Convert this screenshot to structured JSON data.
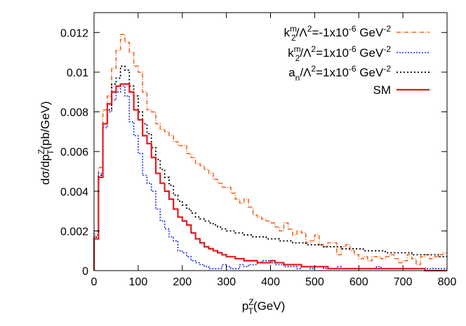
{
  "chart_data": {
    "type": "line",
    "title": "",
    "xlabel": {
      "base": "p",
      "sub": "T",
      "sup": "Z",
      "rest": "(GeV)"
    },
    "ylabel": {
      "pre": "dσ/dp",
      "sub": "T",
      "sup": "Z",
      "rest": "(pb/GeV)"
    },
    "xlim": [
      0,
      800
    ],
    "ylim": [
      0,
      0.013
    ],
    "xticks": [
      0,
      100,
      200,
      300,
      400,
      500,
      600,
      700,
      800
    ],
    "yticks": [
      0,
      0.002,
      0.004,
      0.006,
      0.008,
      0.01,
      0.012
    ],
    "ytick_labels": [
      "0",
      "0.002",
      "0.004",
      "0.006",
      "0.008",
      "0.01",
      "0.012"
    ],
    "bin_width": 10,
    "grid": false,
    "legend_position": "top-right",
    "series": [
      {
        "key": "k2m_neg",
        "legend": {
          "a": "k",
          "a_sub": "2",
          "a_sup": "m",
          "b": "/Λ",
          "b_sup": "2",
          "c": "=-1x10",
          "c_sup": "-6",
          "d": " GeV",
          "d_sup": "-2"
        },
        "color": "#f26522",
        "dash": "6,2,1,2",
        "width": 1.6,
        "x": [
          0,
          10,
          20,
          30,
          40,
          50,
          60,
          70,
          80,
          90,
          100,
          110,
          120,
          130,
          140,
          150,
          160,
          170,
          180,
          190,
          200,
          210,
          220,
          230,
          240,
          250,
          260,
          270,
          280,
          290,
          300,
          310,
          320,
          330,
          340,
          350,
          360,
          370,
          380,
          390,
          400,
          410,
          420,
          430,
          440,
          450,
          460,
          470,
          480,
          490,
          500,
          510,
          520,
          530,
          540,
          550,
          560,
          570,
          580,
          590,
          600,
          610,
          620,
          630,
          640,
          650,
          660,
          670,
          680,
          690,
          700,
          710,
          720,
          730,
          740,
          750,
          760,
          770,
          780,
          790
        ],
        "y": [
          0.0018,
          0.0052,
          0.0081,
          0.0088,
          0.0102,
          0.0111,
          0.0119,
          0.0115,
          0.011,
          0.0103,
          0.01,
          0.009,
          0.0081,
          0.008,
          0.0074,
          0.0071,
          0.007,
          0.0068,
          0.0065,
          0.0063,
          0.0063,
          0.0059,
          0.0057,
          0.0054,
          0.0053,
          0.0051,
          0.0049,
          0.0046,
          0.0044,
          0.0042,
          0.0042,
          0.0039,
          0.0036,
          0.0034,
          0.0036,
          0.0032,
          0.0028,
          0.0027,
          0.0026,
          0.0025,
          0.0024,
          0.0022,
          0.002,
          0.0024,
          0.0021,
          0.0018,
          0.002,
          0.0019,
          0.0014,
          0.0015,
          0.0018,
          0.0013,
          0.0012,
          0.0014,
          0.0014,
          0.0008,
          0.0012,
          0.0013,
          0.001,
          0.0008,
          0.0006,
          0.0007,
          0.0005,
          0.0007,
          0.0007,
          0.0006,
          0.0007,
          0.0008,
          0.0006,
          0.0004,
          0.0005,
          0.0008,
          0.0006,
          0.0003,
          0.0007,
          0.0008,
          0.0006,
          0.0007,
          0.0008,
          0.0009
        ]
      },
      {
        "key": "k2m_pos",
        "legend": {
          "a": "k",
          "a_sub": "2",
          "a_sup": "m",
          "b": "/Λ",
          "b_sup": "2",
          "c": "=1x10",
          "c_sup": "-6",
          "d": " GeV",
          "d_sup": "-2"
        },
        "color": "#1a2de8",
        "dash": "2,2",
        "width": 1.6,
        "x": [
          0,
          10,
          20,
          30,
          40,
          50,
          60,
          70,
          80,
          90,
          100,
          110,
          120,
          130,
          140,
          150,
          160,
          170,
          180,
          190,
          200,
          210,
          220,
          230,
          240,
          250,
          260,
          270,
          280,
          290,
          300,
          310,
          320,
          330,
          340,
          350,
          360,
          370,
          380,
          390,
          400,
          410,
          420,
          430,
          440,
          450,
          460,
          470,
          480,
          490,
          500,
          510,
          520,
          530,
          540,
          550,
          560,
          570,
          580,
          590,
          600,
          610,
          620,
          630,
          640,
          650,
          660,
          670,
          680,
          690,
          700,
          710,
          720,
          730,
          740,
          750,
          760,
          770,
          780,
          790
        ],
        "y": [
          0.002,
          0.0049,
          0.0072,
          0.008,
          0.0086,
          0.009,
          0.0093,
          0.0088,
          0.0075,
          0.0068,
          0.0059,
          0.0048,
          0.0044,
          0.004,
          0.0031,
          0.0025,
          0.0021,
          0.0017,
          0.0015,
          0.001,
          0.0009,
          0.0007,
          0.0005,
          0.0004,
          0.0003,
          0.0002,
          0.0001,
          0.0001,
          0.0001,
          0.0003,
          0.0002,
          0.0001,
          0.0001,
          0.0003,
          0.0002,
          0.0003,
          0.0003,
          0.0004,
          0.0005,
          0.0005,
          0.0004,
          0.0003,
          0.0003,
          0.0002,
          0.0002,
          0.0002,
          0.0001,
          0.0002,
          0.0002,
          0.0001,
          0.0002,
          0.0002,
          0.0001,
          0.0001,
          0.0001,
          0.0002,
          0.0001,
          0.0001,
          0.0001,
          0.0001,
          0.0001,
          0.0001,
          0.0001,
          0.0001,
          0.0002,
          0.0001,
          0.0001,
          0.0001,
          0.0001,
          0.0001,
          0.0001,
          0.0001,
          0.0001,
          0.0001,
          0.0001,
          0.0001,
          0.0001,
          0.0001,
          0.0001,
          0.0001
        ]
      },
      {
        "key": "an",
        "legend": {
          "a": "a",
          "a_sub": "n",
          "a_sup": "",
          "b": "/Λ",
          "b_sup": "2",
          "c": "=1x10",
          "c_sup": "-6",
          "d": " GeV",
          "d_sup": "-2"
        },
        "color": "#000000",
        "dash": "2,3",
        "width": 1.8,
        "x": [
          0,
          10,
          20,
          30,
          40,
          50,
          60,
          70,
          80,
          90,
          100,
          110,
          120,
          130,
          140,
          150,
          160,
          170,
          180,
          190,
          200,
          210,
          220,
          230,
          240,
          250,
          260,
          270,
          280,
          290,
          300,
          310,
          320,
          330,
          340,
          350,
          360,
          370,
          380,
          390,
          400,
          410,
          420,
          430,
          440,
          450,
          460,
          470,
          480,
          490,
          500,
          510,
          520,
          530,
          540,
          550,
          560,
          570,
          580,
          590,
          600,
          610,
          620,
          630,
          640,
          650,
          660,
          670,
          680,
          690,
          700,
          710,
          720,
          730,
          740,
          750,
          760,
          770,
          780,
          790
        ],
        "y": [
          0.0017,
          0.0048,
          0.0074,
          0.0081,
          0.0094,
          0.0097,
          0.0103,
          0.0101,
          0.0093,
          0.0088,
          0.008,
          0.0074,
          0.0069,
          0.0062,
          0.0056,
          0.0051,
          0.0047,
          0.0043,
          0.0038,
          0.0035,
          0.0033,
          0.0031,
          0.0029,
          0.0027,
          0.0026,
          0.0025,
          0.0024,
          0.0023,
          0.0022,
          0.0021,
          0.002,
          0.002,
          0.0019,
          0.0019,
          0.0018,
          0.0018,
          0.0017,
          0.0017,
          0.0017,
          0.0016,
          0.0016,
          0.0016,
          0.0015,
          0.0015,
          0.0015,
          0.0014,
          0.0014,
          0.0014,
          0.0013,
          0.0013,
          0.0013,
          0.0013,
          0.0012,
          0.0012,
          0.0012,
          0.0012,
          0.0011,
          0.0011,
          0.0011,
          0.0011,
          0.0011,
          0.001,
          0.001,
          0.001,
          0.001,
          0.001,
          0.0009,
          0.0009,
          0.0009,
          0.0009,
          0.0009,
          0.0009,
          0.0008,
          0.0008,
          0.0008,
          0.0008,
          0.0008,
          0.0008,
          0.0007,
          0.0007
        ]
      },
      {
        "key": "sm",
        "legend": {
          "a": "SM",
          "a_sub": "",
          "a_sup": "",
          "b": "",
          "b_sup": "",
          "c": "",
          "c_sup": "",
          "d": "",
          "d_sup": ""
        },
        "color": "#e41a1c",
        "dash": "",
        "width": 2.2,
        "x": [
          0,
          10,
          20,
          30,
          40,
          50,
          60,
          70,
          80,
          90,
          100,
          110,
          120,
          130,
          140,
          150,
          160,
          170,
          180,
          190,
          200,
          210,
          220,
          230,
          240,
          250,
          260,
          270,
          280,
          290,
          300,
          310,
          320,
          330,
          340,
          350,
          360,
          370,
          380,
          390,
          400,
          410,
          420,
          430,
          440,
          450,
          460,
          470,
          480,
          490,
          500,
          510,
          520,
          530,
          540,
          550,
          560,
          570,
          580,
          590,
          600,
          610,
          620,
          630,
          640,
          650,
          660,
          670,
          680,
          690,
          700,
          710,
          720,
          730,
          740,
          750,
          760,
          770,
          780,
          790
        ],
        "y": [
          0.0016,
          0.0047,
          0.0074,
          0.0084,
          0.009,
          0.0093,
          0.0094,
          0.0094,
          0.009,
          0.0081,
          0.0076,
          0.0068,
          0.0064,
          0.0057,
          0.0049,
          0.0044,
          0.004,
          0.0036,
          0.0031,
          0.0027,
          0.0025,
          0.0023,
          0.0019,
          0.0016,
          0.0014,
          0.0012,
          0.0011,
          0.001,
          0.0009,
          0.0008,
          0.0007,
          0.0007,
          0.0006,
          0.0006,
          0.0005,
          0.0005,
          0.0005,
          0.0004,
          0.0004,
          0.0004,
          0.0005,
          0.0004,
          0.0004,
          0.0003,
          0.0003,
          0.0003,
          0.0003,
          0.0002,
          0.0002,
          0.0002,
          0.0002,
          0.0002,
          0.0002,
          0.0001,
          0.0001,
          0.0001,
          0.0001,
          0.0001,
          0.0001,
          0.0001,
          0.0001,
          0.0001,
          0.0001,
          0.0001,
          0.0001,
          0.0001,
          0.0001,
          0.0001,
          0.0001,
          0.0001,
          0.0001,
          0.0001,
          0.0001,
          0.0001,
          0.0001,
          0.0,
          0.0,
          0.0,
          0.0,
          0.0
        ]
      }
    ]
  }
}
